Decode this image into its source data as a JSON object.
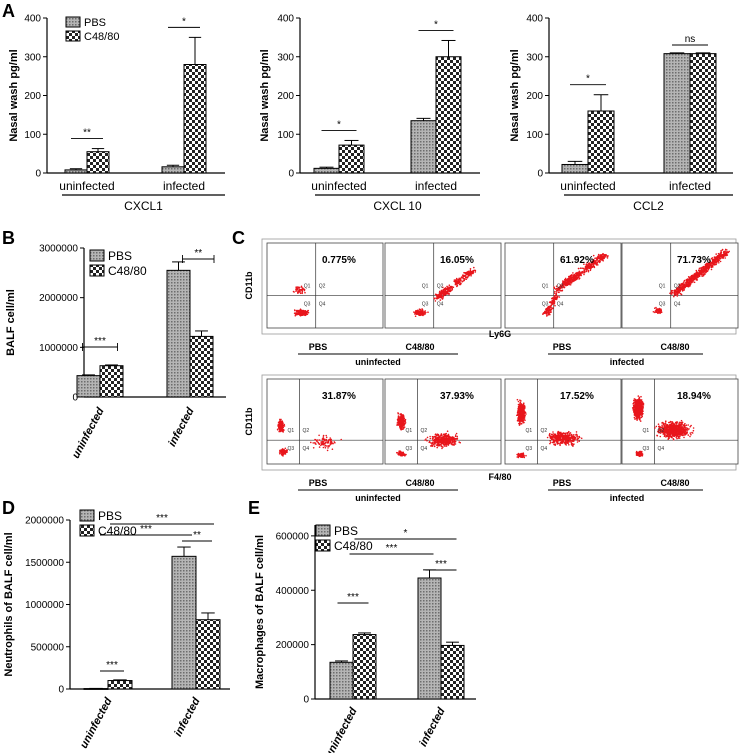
{
  "colors": {
    "pbs_fill": "#9a9a9a",
    "c48_fill": "checker",
    "flow_dot": "#e8161c",
    "axis": "#000000"
  },
  "series_names": [
    "PBS",
    "C48/80"
  ],
  "panels": {
    "A": "A",
    "B": "B",
    "C": "C",
    "D": "D",
    "E": "E"
  },
  "chart_data": [
    {
      "id": "A1",
      "type": "bar",
      "panel": "A",
      "ylabel": "Nasal wash pg/ml",
      "ylim": [
        0,
        400
      ],
      "yticks": [
        "0",
        "100",
        "200",
        "300",
        "400"
      ],
      "categories": [
        "uninfected",
        "infected"
      ],
      "group_label": "CXCL1",
      "series": [
        {
          "name": "PBS",
          "values": [
            8,
            16
          ],
          "errors": [
            3,
            4
          ]
        },
        {
          "name": "C48/80",
          "values": [
            55,
            280
          ],
          "errors": [
            8,
            70
          ]
        }
      ],
      "significance": [
        "**",
        "*"
      ]
    },
    {
      "id": "A2",
      "type": "bar",
      "panel": "A",
      "ylabel": "Nasal wash pg/ml",
      "ylim": [
        0,
        400
      ],
      "yticks": [
        "0",
        "100",
        "200",
        "300",
        "400"
      ],
      "categories": [
        "uninfected",
        "infected"
      ],
      "group_label": "CXCL 10",
      "series": [
        {
          "name": "PBS",
          "values": [
            12,
            135
          ],
          "errors": [
            3,
            6
          ]
        },
        {
          "name": "C48/80",
          "values": [
            72,
            300
          ],
          "errors": [
            12,
            42
          ]
        }
      ],
      "significance": [
        "*",
        "*"
      ]
    },
    {
      "id": "A3",
      "type": "bar",
      "panel": "A",
      "ylabel": "Nasal wash pg/ml",
      "ylim": [
        0,
        400
      ],
      "yticks": [
        "0",
        "100",
        "200",
        "300",
        "400"
      ],
      "categories": [
        "uninfected",
        "infected"
      ],
      "group_label": "CCL2",
      "series": [
        {
          "name": "PBS",
          "values": [
            22,
            308
          ],
          "errors": [
            8,
            2
          ]
        },
        {
          "name": "C48/80",
          "values": [
            160,
            308
          ],
          "errors": [
            42,
            2
          ]
        }
      ],
      "significance": [
        "*",
        "ns"
      ]
    },
    {
      "id": "B",
      "type": "bar",
      "panel": "B",
      "ylabel": "BALF cell/ml",
      "ylim": [
        0,
        3000000
      ],
      "yticks": [
        "0",
        "1000000",
        "2000000",
        "3000000"
      ],
      "categories": [
        "uninfected",
        "infected"
      ],
      "series": [
        {
          "name": "PBS",
          "values": [
            430000,
            2550000
          ],
          "errors": [
            15000,
            170000
          ]
        },
        {
          "name": "C48/80",
          "values": [
            630000,
            1220000
          ],
          "errors": [
            15000,
            110000
          ]
        }
      ],
      "significance": [
        "***",
        "**"
      ]
    },
    {
      "id": "D",
      "type": "bar",
      "panel": "D",
      "ylabel": "Neutrophils of BALF cell/ml",
      "ylim": [
        0,
        2000000
      ],
      "yticks": [
        "0",
        "500000",
        "1000000",
        "1500000",
        "2000000"
      ],
      "categories": [
        "uninfected",
        "infected"
      ],
      "series": [
        {
          "name": "PBS",
          "values": [
            5000,
            1570000
          ],
          "errors": [
            2000,
            110000
          ]
        },
        {
          "name": "C48/80",
          "values": [
            100000,
            820000
          ],
          "errors": [
            8000,
            80000
          ]
        }
      ],
      "significance": [
        "***",
        "**",
        "***",
        "***"
      ]
    },
    {
      "id": "E",
      "type": "bar",
      "panel": "E",
      "ylabel": "Macrophages of BALF cell/ml",
      "ylim": [
        0,
        640000
      ],
      "yticks": [
        "0",
        "200000",
        "400000",
        "600000"
      ],
      "categories": [
        "uninfected",
        "infected"
      ],
      "series": [
        {
          "name": "PBS",
          "values": [
            135000,
            445000
          ],
          "errors": [
            5000,
            30000
          ]
        },
        {
          "name": "C48/80",
          "values": [
            237000,
            197000
          ],
          "errors": [
            6000,
            12000
          ]
        }
      ],
      "significance": [
        "***",
        "***",
        "***",
        "*"
      ]
    },
    {
      "id": "C1",
      "type": "scatter",
      "panel": "C",
      "ylabel": "CD11b",
      "xlabel": "Ly6G",
      "quadrant_labels": [
        "Q1",
        "Q2",
        "Q3",
        "Q4"
      ],
      "plots": [
        {
          "percent": "0.775%"
        },
        {
          "percent": "16.05%"
        },
        {
          "percent": "61.92%"
        },
        {
          "percent": "71.73%"
        }
      ],
      "conditions": [
        "PBS",
        "C48/80",
        "PBS",
        "C48/80"
      ],
      "groups": [
        "uninfected",
        "infected"
      ]
    },
    {
      "id": "C2",
      "type": "scatter",
      "panel": "C",
      "ylabel": "CD11b",
      "xlabel": "F4/80",
      "quadrant_labels": [
        "Q1",
        "Q2",
        "Q3",
        "Q4"
      ],
      "plots": [
        {
          "percent": "31.87%"
        },
        {
          "percent": "37.93%"
        },
        {
          "percent": "17.52%"
        },
        {
          "percent": "18.94%"
        }
      ],
      "conditions": [
        "PBS",
        "C48/80",
        "PBS",
        "C48/80"
      ],
      "groups": [
        "uninfected",
        "infected"
      ]
    }
  ]
}
